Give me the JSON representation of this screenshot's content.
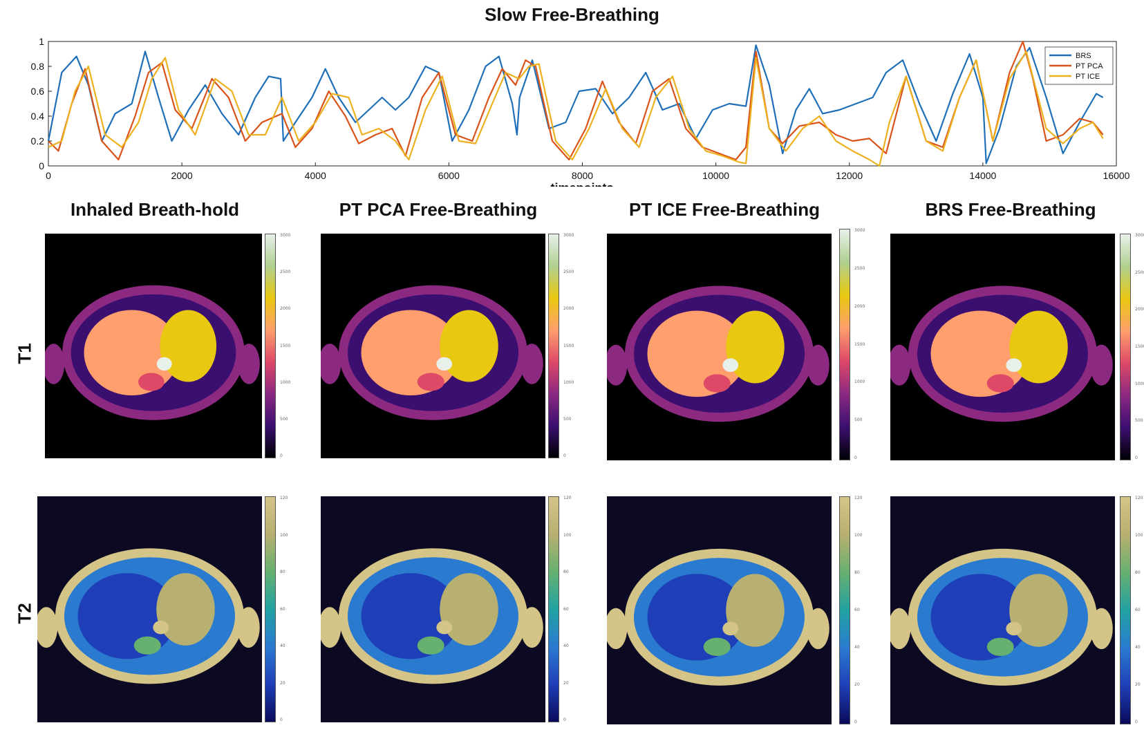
{
  "title": "Slow Free-Breathing",
  "chart_data": {
    "type": "line",
    "xlabel": "timepoints",
    "ylabel": "",
    "xlim": [
      0,
      16000
    ],
    "ylim": [
      0,
      1
    ],
    "xticks": [
      "0",
      "2000",
      "4000",
      "6000",
      "8000",
      "10000",
      "12000",
      "14000",
      "16000"
    ],
    "yticks": [
      "0",
      "0.2",
      "0.4",
      "0.6",
      "0.8",
      "1"
    ],
    "legend_position": "top-right",
    "series": [
      {
        "name": "BRS",
        "color": "#1f6fb8",
        "x": [
          0,
          200,
          420,
          600,
          800,
          1000,
          1250,
          1450,
          1650,
          1850,
          2100,
          2350,
          2600,
          2850,
          3100,
          3300,
          3480,
          3520,
          3700,
          3950,
          4150,
          4350,
          4600,
          4800,
          5000,
          5200,
          5400,
          5650,
          5850,
          6050,
          6300,
          6550,
          6750,
          6950,
          7020,
          7060,
          7250,
          7500,
          7750,
          7950,
          8200,
          8450,
          8700,
          8950,
          9200,
          9450,
          9700,
          9950,
          10200,
          10450,
          10600,
          10800,
          11000,
          11200,
          11400,
          11600,
          11850,
          12100,
          12350,
          12550,
          12800,
          13050,
          13300,
          13550,
          13800,
          14000,
          14050,
          14250,
          14500,
          14700,
          14950,
          15200,
          15450,
          15700,
          15800
        ],
        "y": [
          0.2,
          0.75,
          0.88,
          0.65,
          0.2,
          0.42,
          0.5,
          0.92,
          0.55,
          0.2,
          0.45,
          0.65,
          0.42,
          0.25,
          0.55,
          0.72,
          0.7,
          0.2,
          0.35,
          0.55,
          0.78,
          0.55,
          0.35,
          0.45,
          0.55,
          0.45,
          0.55,
          0.8,
          0.75,
          0.2,
          0.45,
          0.8,
          0.88,
          0.5,
          0.25,
          0.55,
          0.85,
          0.3,
          0.35,
          0.6,
          0.62,
          0.42,
          0.55,
          0.75,
          0.45,
          0.5,
          0.22,
          0.45,
          0.5,
          0.48,
          0.97,
          0.65,
          0.1,
          0.45,
          0.62,
          0.42,
          0.45,
          0.5,
          0.55,
          0.75,
          0.85,
          0.5,
          0.2,
          0.58,
          0.9,
          0.55,
          0.02,
          0.3,
          0.8,
          0.95,
          0.55,
          0.1,
          0.35,
          0.58,
          0.55
        ]
      },
      {
        "name": "PT PCA",
        "color": "#d95319",
        "x": [
          0,
          150,
          350,
          550,
          800,
          1050,
          1300,
          1500,
          1700,
          1900,
          2150,
          2450,
          2700,
          2950,
          3200,
          3500,
          3700,
          3950,
          4200,
          4450,
          4650,
          4900,
          5150,
          5350,
          5600,
          5850,
          6100,
          6350,
          6600,
          6800,
          7000,
          7150,
          7300,
          7550,
          7800,
          8050,
          8300,
          8550,
          8800,
          9050,
          9300,
          9550,
          9800,
          10050,
          10300,
          10450,
          10600,
          10800,
          11000,
          11250,
          11550,
          11800,
          12050,
          12300,
          12550,
          12850,
          13150,
          13400,
          13650,
          13900,
          14150,
          14400,
          14600,
          14750,
          14950,
          15200,
          15450,
          15650,
          15800
        ],
        "y": [
          0.2,
          0.12,
          0.5,
          0.78,
          0.2,
          0.05,
          0.4,
          0.75,
          0.83,
          0.45,
          0.3,
          0.7,
          0.55,
          0.2,
          0.35,
          0.42,
          0.15,
          0.3,
          0.6,
          0.4,
          0.18,
          0.25,
          0.3,
          0.08,
          0.55,
          0.75,
          0.25,
          0.2,
          0.55,
          0.78,
          0.65,
          0.85,
          0.8,
          0.2,
          0.05,
          0.3,
          0.68,
          0.35,
          0.18,
          0.6,
          0.7,
          0.3,
          0.15,
          0.1,
          0.05,
          0.15,
          0.92,
          0.3,
          0.18,
          0.32,
          0.35,
          0.25,
          0.2,
          0.22,
          0.1,
          0.72,
          0.2,
          0.15,
          0.55,
          0.85,
          0.2,
          0.75,
          1.0,
          0.7,
          0.2,
          0.25,
          0.38,
          0.35,
          0.25
        ]
      },
      {
        "name": "PT ICE",
        "color": "#edb120",
        "x": [
          0,
          200,
          400,
          600,
          850,
          1100,
          1350,
          1550,
          1750,
          1950,
          2200,
          2500,
          2750,
          3000,
          3250,
          3500,
          3750,
          4000,
          4250,
          4500,
          4700,
          4950,
          5200,
          5400,
          5650,
          5900,
          6150,
          6400,
          6650,
          6850,
          7050,
          7200,
          7350,
          7600,
          7850,
          8100,
          8350,
          8600,
          8850,
          9100,
          9350,
          9600,
          9850,
          10100,
          10350,
          10450,
          10600,
          10800,
          11050,
          11300,
          11550,
          11800,
          12050,
          12300,
          12450,
          12600,
          12850,
          13150,
          13400,
          13650,
          13900,
          14150,
          14400,
          14650,
          14950,
          15200,
          15450,
          15650,
          15800
        ],
        "y": [
          0.15,
          0.2,
          0.6,
          0.8,
          0.25,
          0.15,
          0.35,
          0.7,
          0.87,
          0.45,
          0.25,
          0.7,
          0.6,
          0.25,
          0.25,
          0.55,
          0.2,
          0.35,
          0.58,
          0.55,
          0.25,
          0.3,
          0.2,
          0.05,
          0.45,
          0.72,
          0.2,
          0.18,
          0.5,
          0.75,
          0.7,
          0.8,
          0.82,
          0.2,
          0.05,
          0.3,
          0.62,
          0.3,
          0.15,
          0.55,
          0.72,
          0.3,
          0.12,
          0.08,
          0.03,
          0.02,
          0.87,
          0.3,
          0.12,
          0.3,
          0.4,
          0.2,
          0.12,
          0.05,
          0.0,
          0.35,
          0.72,
          0.2,
          0.12,
          0.55,
          0.85,
          0.2,
          0.7,
          0.92,
          0.3,
          0.18,
          0.3,
          0.35,
          0.22
        ]
      }
    ]
  },
  "columns": [
    "Inhaled Breath-hold",
    "PT PCA Free-Breathing",
    "PT ICE Free-Breathing",
    "BRS Free-Breathing"
  ],
  "rows": [
    "T1",
    "T2"
  ],
  "t1_colorbar_ticks": [
    "3000",
    "2500",
    "2000",
    "1500",
    "1000",
    "500",
    "0"
  ],
  "t2_colorbar_ticks": [
    "120",
    "100",
    "80",
    "60",
    "40",
    "20",
    "0"
  ],
  "colors": {
    "t1_colormap": [
      "#000004",
      "#3b0f70",
      "#8c2981",
      "#de4968",
      "#fe9f6d",
      "#e8c810",
      "#b0d090",
      "#e8f0ea"
    ],
    "t2_colormap": [
      "#0a0a5a",
      "#1f3fb8",
      "#2a7ad0",
      "#22a2a2",
      "#66b070",
      "#b8b070",
      "#d4c488"
    ]
  }
}
